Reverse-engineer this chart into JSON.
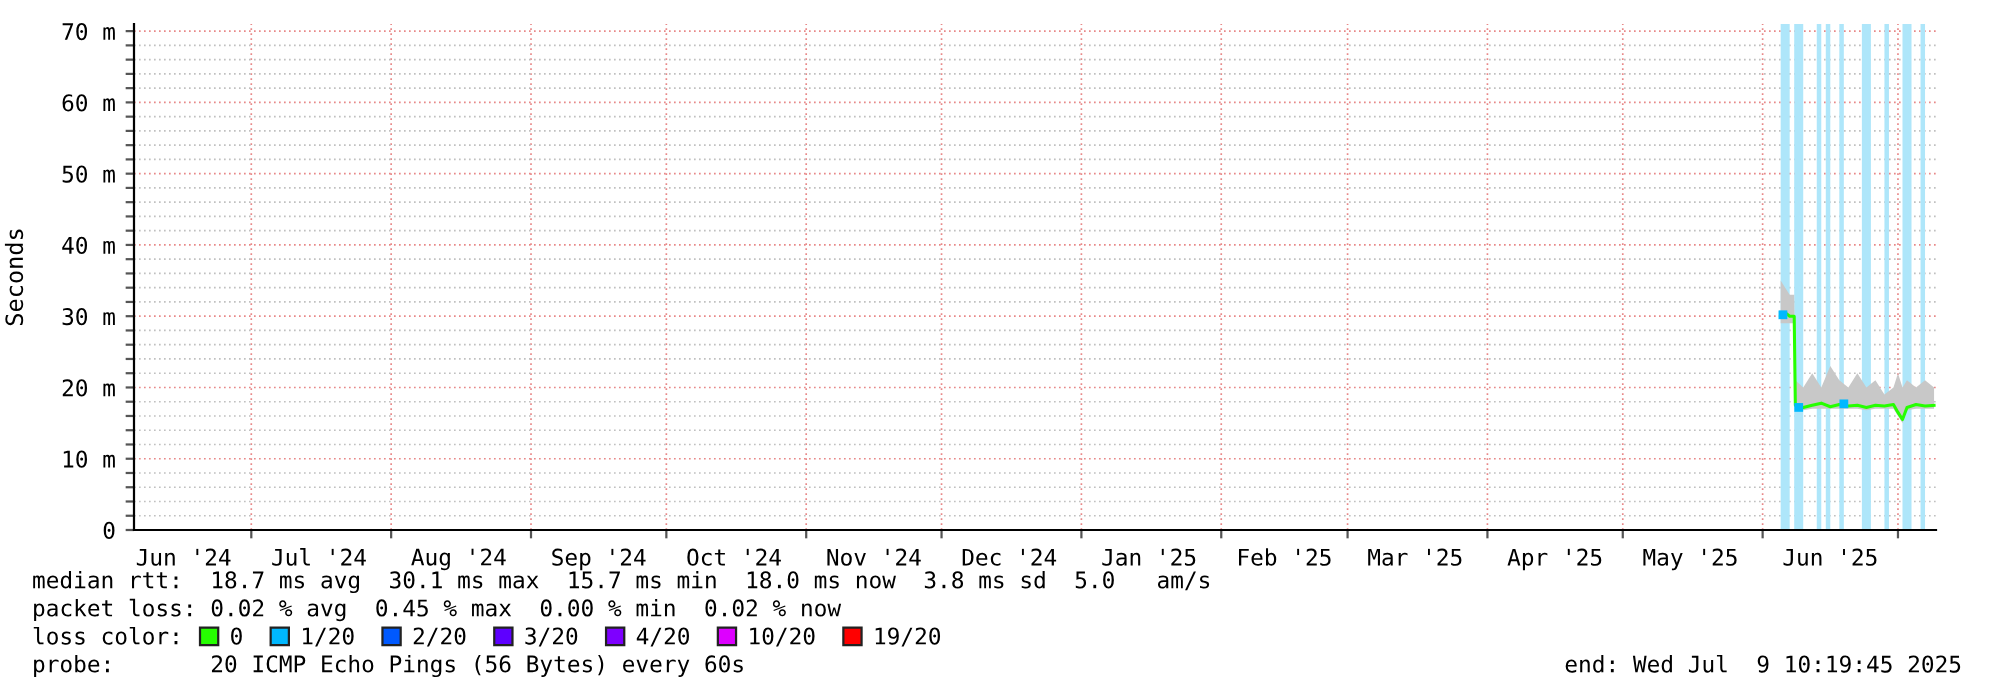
{
  "chart_data": {
    "type": "line",
    "ylabel": "Seconds",
    "legend_title": "loss color:",
    "legend": "bottom",
    "grid": true,
    "xlim": [
      "2024-06-05",
      "2025-07-09T10:19"
    ],
    "xticks": [
      {
        "value": "2024-06-16",
        "label": "Jun '24"
      },
      {
        "value": "2024-07-01",
        "label": null
      },
      {
        "value": "2024-07-16",
        "label": "Jul '24"
      },
      {
        "value": "2024-08-01",
        "label": null
      },
      {
        "value": "2024-08-16",
        "label": "Aug '24"
      },
      {
        "value": "2024-09-01",
        "label": null
      },
      {
        "value": "2024-09-16",
        "label": "Sep '24"
      },
      {
        "value": "2024-10-01",
        "label": null
      },
      {
        "value": "2024-10-16",
        "label": "Oct '24"
      },
      {
        "value": "2024-11-01",
        "label": null
      },
      {
        "value": "2024-11-16",
        "label": "Nov '24"
      },
      {
        "value": "2024-12-01",
        "label": null
      },
      {
        "value": "2024-12-16",
        "label": "Dec '24"
      },
      {
        "value": "2025-01-01",
        "label": null
      },
      {
        "value": "2025-01-16",
        "label": "Jan '25"
      },
      {
        "value": "2025-02-01",
        "label": null
      },
      {
        "value": "2025-02-15",
        "label": "Feb '25"
      },
      {
        "value": "2025-03-01",
        "label": null
      },
      {
        "value": "2025-03-16",
        "label": "Mar '25"
      },
      {
        "value": "2025-04-01",
        "label": null
      },
      {
        "value": "2025-04-16",
        "label": "Apr '25"
      },
      {
        "value": "2025-05-01",
        "label": null
      },
      {
        "value": "2025-05-16",
        "label": "May '25"
      },
      {
        "value": "2025-06-01",
        "label": null
      },
      {
        "value": "2025-06-16",
        "label": "Jun '25"
      },
      {
        "value": "2025-07-01",
        "label": null
      }
    ],
    "ylim": [
      0,
      71
    ],
    "yticks": [
      0,
      {
        "value": 2,
        "label": null
      },
      {
        "value": 4,
        "label": null
      },
      {
        "value": 6,
        "label": null
      },
      {
        "value": 8,
        "label": null
      },
      {
        "value": 10,
        "label": "10 m"
      },
      {
        "value": 12,
        "label": null
      },
      {
        "value": 14,
        "label": null
      },
      {
        "value": 16,
        "label": null
      },
      {
        "value": 18,
        "label": null
      },
      {
        "value": 20,
        "label": "20 m"
      },
      {
        "value": 22,
        "label": null
      },
      {
        "value": 24,
        "label": null
      },
      {
        "value": 26,
        "label": null
      },
      {
        "value": 28,
        "label": null
      },
      {
        "value": 30,
        "label": "30 m"
      },
      {
        "value": 32,
        "label": null
      },
      {
        "value": 34,
        "label": null
      },
      {
        "value": 36,
        "label": null
      },
      {
        "value": 38,
        "label": null
      },
      {
        "value": 40,
        "label": "40 m"
      },
      {
        "value": 42,
        "label": null
      },
      {
        "value": 44,
        "label": null
      },
      {
        "value": 46,
        "label": null
      },
      {
        "value": 48,
        "label": null
      },
      {
        "value": 50,
        "label": "50 m"
      },
      {
        "value": 52,
        "label": null
      },
      {
        "value": 54,
        "label": null
      },
      {
        "value": 56,
        "label": null
      },
      {
        "value": 58,
        "label": null
      },
      {
        "value": 60,
        "label": "60 m"
      },
      {
        "value": 62,
        "label": null
      },
      {
        "value": 64,
        "label": null
      },
      {
        "value": 66,
        "label": null
      },
      {
        "value": 68,
        "label": null
      },
      {
        "value": 70,
        "label": "70 m"
      }
    ],
    "bands": [
      {
        "axis": "x",
        "from": "2025-06-05",
        "to": "2025-06-07",
        "color": "#aee6fa"
      },
      {
        "axis": "x",
        "from": "2025-06-08",
        "to": "2025-06-10",
        "color": "#aee6fa"
      },
      {
        "axis": "x",
        "from": "2025-06-13",
        "to": "2025-06-14",
        "color": "#aee6fa"
      },
      {
        "axis": "x",
        "from": "2025-06-15",
        "to": "2025-06-16",
        "color": "#aee6fa"
      },
      {
        "axis": "x",
        "from": "2025-06-18",
        "to": "2025-06-19",
        "color": "#aee6fa"
      },
      {
        "axis": "x",
        "from": "2025-06-23",
        "to": "2025-06-25",
        "color": "#aee6fa"
      },
      {
        "axis": "x",
        "from": "2025-06-28",
        "to": "2025-06-29",
        "color": "#aee6fa"
      },
      {
        "axis": "x",
        "from": "2025-07-02",
        "to": "2025-07-04",
        "color": "#aee6fa"
      },
      {
        "axis": "x",
        "from": "2025-07-06",
        "to": "2025-07-07",
        "color": "#aee6fa"
      }
    ],
    "series": [
      {
        "name": "0",
        "color": "#26ff00",
        "x": [
          "2025-06-05",
          "2025-06-06",
          "2025-06-07",
          "2025-06-08",
          "2025-06-08T06:00",
          "2025-06-10",
          "2025-06-12",
          "2025-06-14",
          "2025-06-16",
          "2025-06-18",
          "2025-06-20",
          "2025-06-22",
          "2025-06-24",
          "2025-06-26",
          "2025-06-28",
          "2025-06-30",
          "2025-07-01",
          "2025-07-02",
          "2025-07-03",
          "2025-07-05",
          "2025-07-07",
          "2025-07-09"
        ],
        "values": [
          30,
          30.5,
          30,
          30,
          17.5,
          17.2,
          17.5,
          17.8,
          17.3,
          17.6,
          17.4,
          17.5,
          17.2,
          17.5,
          17.4,
          17.6,
          16.5,
          15.5,
          17.2,
          17.6,
          17.4,
          17.5
        ],
        "lower": [
          29,
          29,
          29,
          29,
          17,
          16.8,
          17,
          17,
          17,
          17,
          17,
          17,
          16.8,
          17,
          17,
          17,
          16,
          15,
          16.8,
          17,
          17,
          17
        ],
        "upper": [
          35,
          34,
          33,
          33,
          21,
          20,
          22,
          20,
          23,
          21,
          20,
          22,
          20,
          21,
          19,
          20,
          22,
          20,
          21,
          20,
          21,
          20
        ]
      },
      {
        "name": "1/20",
        "type": "scatter",
        "color": "#00b8ff",
        "x": [
          "2025-06-05T12:00",
          "2025-06-09",
          "2025-06-19"
        ],
        "values": [
          30.2,
          17.2,
          17.7
        ]
      },
      {
        "name": "2/20",
        "color": "#0059ff"
      },
      {
        "name": "3/20",
        "color": "#5e00ff"
      },
      {
        "name": "4/20",
        "color": "#7e00ff"
      },
      {
        "name": "10/20",
        "color": "#dd00ff"
      },
      {
        "name": "19/20",
        "color": "#ff0000"
      }
    ],
    "annotations": [
      "median rtt:  18.7 ms avg  30.1 ms max  15.7 ms min  18.0 ms now  3.8 ms sd  5.0   am/s",
      "packet loss: 0.02 % avg  0.45 % max  0.00 % min  0.02 % now",
      "probe:       20 ICMP Echo Pings (56 Bytes) every 60s",
      "end: Wed Jul  9 10:19:45 2025"
    ]
  }
}
